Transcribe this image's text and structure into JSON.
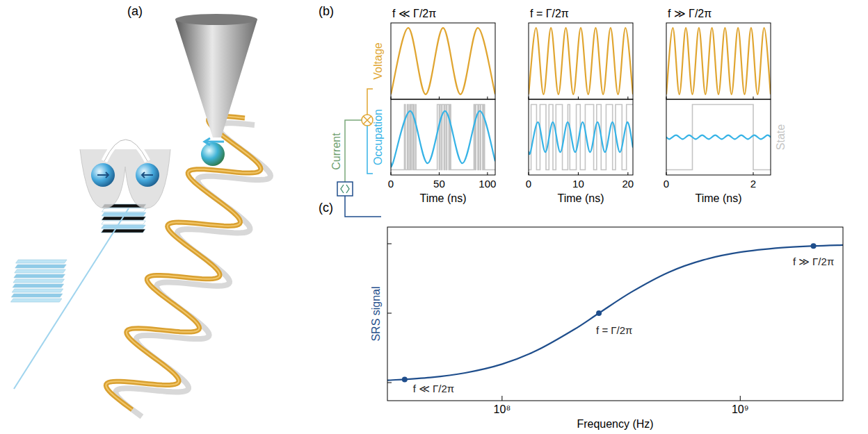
{
  "panel_labels": [
    "(a)",
    "(b)",
    "(c)"
  ],
  "current_label": "Current",
  "chart_data": [
    {
      "type": "line",
      "title": "f ≪ Γ/2π",
      "xlabel": "Time (ns)",
      "xlim": [
        0,
        108
      ],
      "xticks": [
        0,
        50,
        100
      ],
      "ylim": [
        -1.15,
        1.15
      ],
      "y2lim": [
        -0.08,
        1.08
      ],
      "tick_labels": "x",
      "series": [
        {
          "name": "Voltage",
          "color": "#e0a530",
          "line_style": "smooth",
          "x": [
            0,
            18,
            36,
            54,
            72,
            90,
            108
          ],
          "values": [
            -1,
            1,
            -1,
            1,
            -1,
            1,
            -1
          ]
        },
        {
          "color": "#c4c4c4",
          "line_style": "step",
          "axis": "y2",
          "x": [
            0,
            14,
            15,
            17,
            18,
            19.5,
            20,
            21,
            22.5,
            23,
            24,
            25.5,
            26,
            48,
            50,
            51,
            52.5,
            53,
            55,
            56,
            57.5,
            58,
            60,
            61,
            62,
            86,
            87,
            88,
            90,
            91,
            92.5,
            93,
            95,
            96,
            97,
            108
          ],
          "values": [
            0,
            1,
            0,
            1,
            0,
            1,
            0,
            1,
            0,
            1,
            0,
            1,
            0,
            1,
            0,
            1,
            0,
            1,
            0,
            1,
            0,
            1,
            0,
            1,
            0,
            1,
            0,
            1,
            0,
            1,
            0,
            1,
            0,
            1,
            0,
            0
          ]
        },
        {
          "name": "Occupation",
          "color": "#36b3e6",
          "line_style": "smooth",
          "axis": "y2",
          "x": [
            0,
            2,
            20,
            38,
            56,
            74,
            92,
            108
          ],
          "values": [
            0.11,
            0.1,
            0.9,
            0.1,
            0.9,
            0.1,
            0.9,
            0.13
          ]
        }
      ]
    },
    {
      "type": "line",
      "title": "f = Γ/2π",
      "xlabel": "Time (ns)",
      "xlim": [
        0,
        21
      ],
      "xticks": [
        0,
        10,
        20
      ],
      "ylim": [
        -1.15,
        1.15
      ],
      "y2lim": [
        -0.08,
        1.08
      ],
      "tick_labels": "x",
      "series": [
        {
          "color": "#e0a530",
          "line_style": "smooth",
          "x": [
            0,
            1.5,
            3,
            4.5,
            6,
            7.5,
            9,
            10.5,
            12,
            13.5,
            15,
            16.5,
            18,
            19.5,
            21
          ],
          "values": [
            -1,
            1,
            -1,
            1,
            -1,
            1,
            -1,
            1,
            -1,
            1,
            -1,
            1,
            -1,
            1,
            -1
          ]
        },
        {
          "color": "#c4c4c4",
          "line_style": "step",
          "axis": "y2",
          "x": [
            0,
            0.5,
            1.6,
            2.3,
            3.5,
            4.1,
            4.9,
            5.5,
            6.8,
            7.9,
            8.3,
            9.6,
            10.4,
            11.4,
            13.1,
            13.7,
            14.6,
            15.6,
            16.9,
            17.5,
            18.8,
            19.7,
            21
          ],
          "values": [
            0,
            1,
            0,
            1,
            0,
            1,
            0,
            1,
            0,
            1,
            0,
            1,
            0,
            1,
            0,
            1,
            0,
            1,
            0,
            1,
            0,
            1,
            1
          ]
        },
        {
          "color": "#36b3e6",
          "line_style": "smooth",
          "axis": "y2",
          "x": [
            0,
            0.375,
            1.875,
            3.375,
            4.875,
            6.375,
            7.875,
            9.375,
            10.875,
            12.375,
            13.875,
            15.375,
            16.875,
            18.375,
            19.875,
            21
          ],
          "values": [
            0.28,
            0.27,
            0.73,
            0.27,
            0.73,
            0.27,
            0.73,
            0.27,
            0.73,
            0.27,
            0.73,
            0.27,
            0.73,
            0.27,
            0.73,
            0.34
          ]
        }
      ]
    },
    {
      "type": "line",
      "title": "f ≫ Γ/2π",
      "xlabel": "Time (ns)",
      "xlim": [
        0,
        2.4
      ],
      "xticks": [
        0,
        2
      ],
      "ylim": [
        -1.15,
        1.15
      ],
      "y2lim": [
        -0.08,
        1.08
      ],
      "tick_labels": "x",
      "series": [
        {
          "color": "#e0a530",
          "line_style": "smooth",
          "x": [
            0,
            0.15,
            0.3,
            0.45,
            0.6,
            0.75,
            0.9,
            1.05,
            1.2,
            1.35,
            1.5,
            1.65,
            1.8,
            1.95,
            2.1,
            2.25,
            2.4
          ],
          "values": [
            -1,
            1,
            -1,
            1,
            -1,
            1,
            -1,
            1,
            -1,
            1,
            -1,
            1,
            -1,
            1,
            -1,
            1,
            -1
          ]
        },
        {
          "name": "State",
          "color": "#c4c4c4",
          "line_style": "step",
          "axis": "y2",
          "x": [
            0,
            0.6,
            2.0,
            2.4
          ],
          "values": [
            0,
            1,
            0,
            0
          ]
        },
        {
          "color": "#36b3e6",
          "line_style": "smooth",
          "axis": "y2",
          "x": [
            0,
            0.075,
            0.225,
            0.375,
            0.525,
            0.675,
            0.825,
            0.975,
            1.125,
            1.275,
            1.425,
            1.575,
            1.725,
            1.875,
            2.025,
            2.175,
            2.325,
            2.4
          ],
          "values": [
            0.5,
            0.47,
            0.53,
            0.47,
            0.53,
            0.47,
            0.53,
            0.47,
            0.53,
            0.47,
            0.53,
            0.47,
            0.53,
            0.47,
            0.53,
            0.47,
            0.53,
            0.5
          ]
        }
      ]
    },
    {
      "type": "line",
      "xlabel": "Frequency (Hz)",
      "ylabel": "SRS signal",
      "log": "x",
      "xlim": [
        33000000.0,
        2700000000.0
      ],
      "xticks": [
        {
          "value": 100000000.0,
          "label": "10⁸"
        },
        {
          "value": 1000000000.0,
          "label": "10⁹"
        }
      ],
      "ylim": [
        -0.13,
        1.12
      ],
      "yticks": [
        0,
        0.5,
        1
      ],
      "tick_labels": "x",
      "color": "#1f4e8c",
      "line_style": "smooth",
      "x": [
        33000000.0,
        50000000.0,
        70000000.0,
        100000000.0,
        140000000.0,
        200000000.0,
        255000000.0,
        350000000.0,
        500000000.0,
        700000000.0,
        1000000000.0,
        1500000000.0,
        2030000000.0,
        2700000000.0
      ],
      "values": [
        0.0165,
        0.037,
        0.07,
        0.133,
        0.232,
        0.381,
        0.5,
        0.653,
        0.794,
        0.883,
        0.939,
        0.972,
        0.984,
        0.991
      ],
      "annotations": [
        {
          "x": 39000000.0,
          "y": 0.023,
          "text": "f ≪ Γ/2π"
        },
        {
          "x": 255000000.0,
          "y": 0.5,
          "text": "f = Γ/2π"
        },
        {
          "x": 2030000000.0,
          "y": 0.984,
          "text": "f ≫ Γ/2π"
        }
      ]
    }
  ]
}
